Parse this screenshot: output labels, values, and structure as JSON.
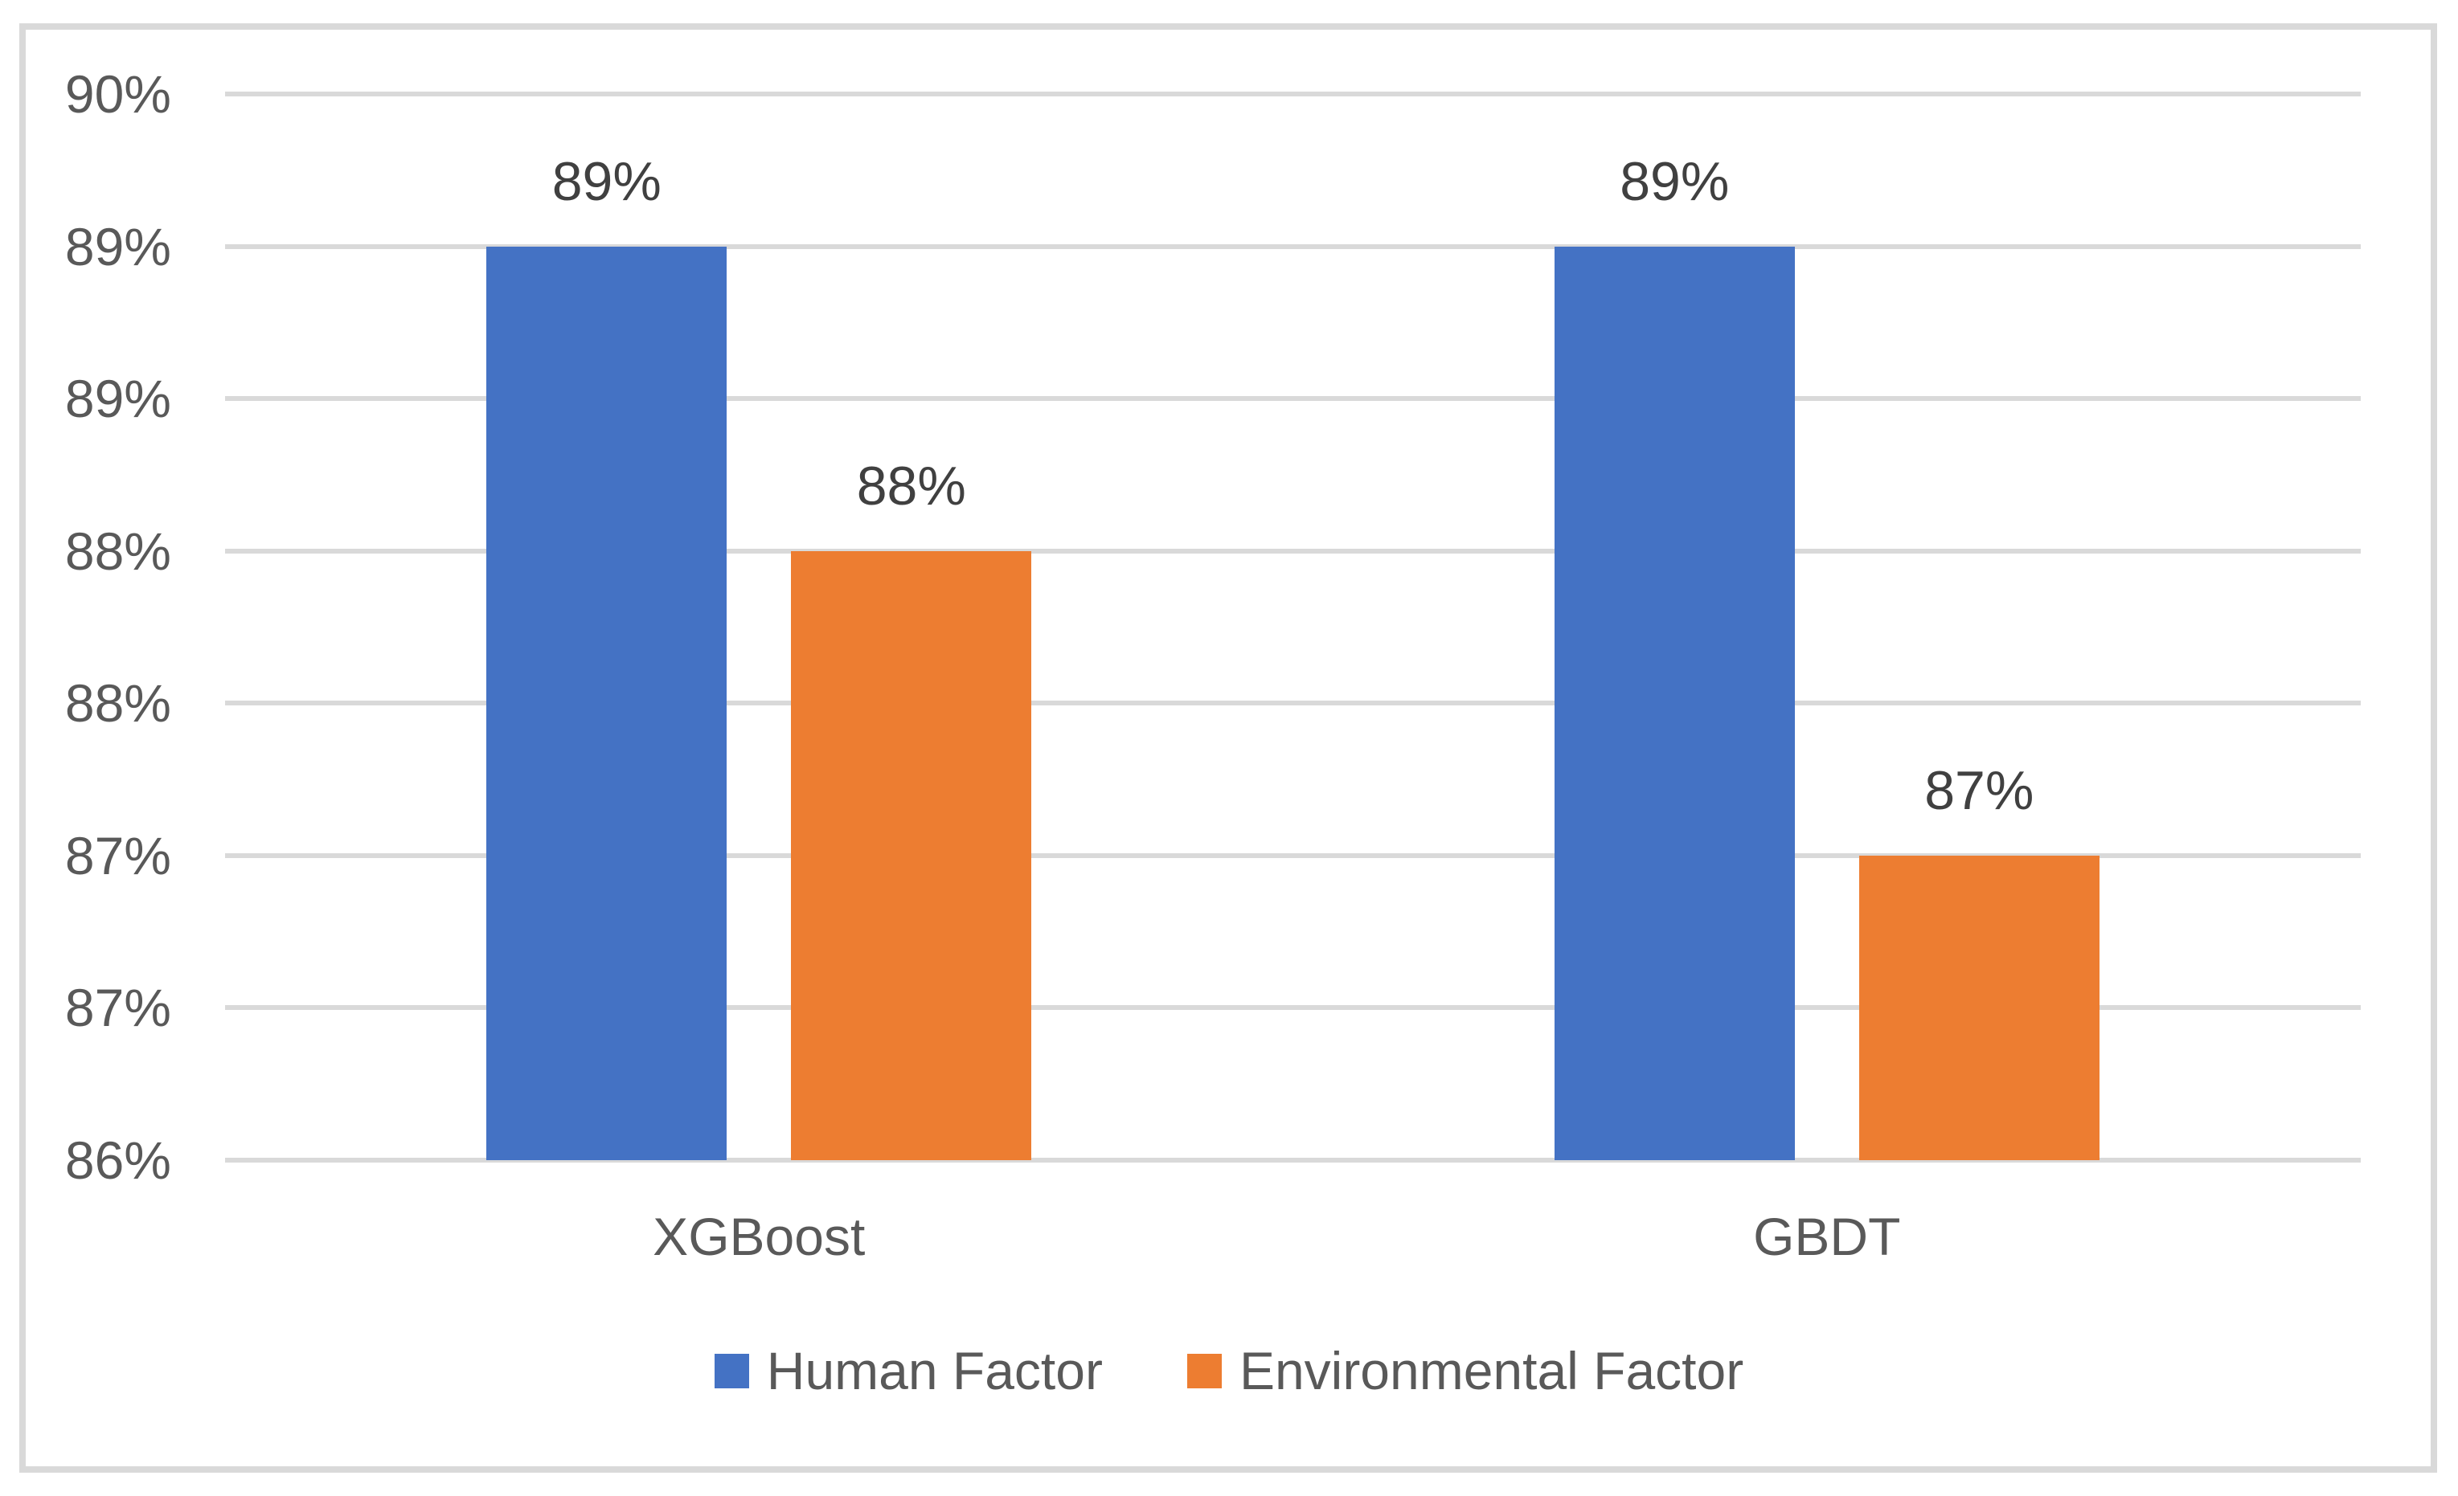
{
  "figure": {
    "background": "#FFFFFF",
    "border_color": "#D9D9D9"
  },
  "chart_data": {
    "type": "bar",
    "title": "",
    "categories": [
      "XGBoost",
      "GBDT"
    ],
    "series": [
      {
        "name": "Human Factor",
        "color": "#4472C4",
        "values": [
          89,
          89
        ],
        "data_labels": [
          "89%",
          "89%"
        ]
      },
      {
        "name": "Environmental Factor",
        "color": "#ED7D31",
        "values": [
          88,
          87
        ],
        "data_labels": [
          "88%",
          "87%"
        ]
      }
    ],
    "y_axis": {
      "min": 86,
      "max": 89.5,
      "major_unit": 0.5,
      "ticks_top_to_bottom": [
        {
          "value": 89.5,
          "label": "90%"
        },
        {
          "value": 89.0,
          "label": "89%"
        },
        {
          "value": 88.5,
          "label": "89%"
        },
        {
          "value": 88.0,
          "label": "88%"
        },
        {
          "value": 87.5,
          "label": "88%"
        },
        {
          "value": 87.0,
          "label": "87%"
        },
        {
          "value": 86.5,
          "label": "87%"
        },
        {
          "value": 86.0,
          "label": "86%"
        }
      ]
    },
    "x_axis": {
      "tick_labels": [
        "XGBoost",
        "GBDT"
      ]
    },
    "legend": {
      "position": "bottom",
      "entries": [
        "Human Factor",
        "Environmental Factor"
      ]
    },
    "grid": true,
    "gridline_color": "#D9D9D9",
    "axis_text_color": "#595959",
    "data_label_color": "#404040"
  }
}
